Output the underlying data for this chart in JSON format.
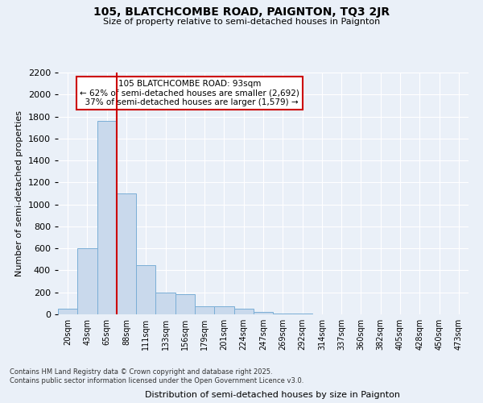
{
  "title": "105, BLATCHCOMBE ROAD, PAIGNTON, TQ3 2JR",
  "subtitle": "Size of property relative to semi-detached houses in Paignton",
  "xlabel": "Distribution of semi-detached houses by size in Paignton",
  "ylabel": "Number of semi-detached properties",
  "footnote": "Contains HM Land Registry data © Crown copyright and database right 2025.\nContains public sector information licensed under the Open Government Licence v3.0.",
  "bar_color": "#c9d9ec",
  "bar_edge_color": "#7aaed6",
  "bg_color": "#eaf0f8",
  "grid_color": "#ffffff",
  "vline_color": "#cc0000",
  "vline_x_index": 3,
  "annotation_text": "105 BLATCHCOMBE ROAD: 93sqm\n← 62% of semi-detached houses are smaller (2,692)\n  37% of semi-detached houses are larger (1,579) →",
  "annotation_box_color": "#ffffff",
  "annotation_box_edge": "#cc0000",
  "categories": [
    "20sqm",
    "43sqm",
    "65sqm",
    "88sqm",
    "111sqm",
    "133sqm",
    "156sqm",
    "179sqm",
    "201sqm",
    "224sqm",
    "247sqm",
    "269sqm",
    "292sqm",
    "314sqm",
    "337sqm",
    "360sqm",
    "382sqm",
    "405sqm",
    "428sqm",
    "450sqm",
    "473sqm"
  ],
  "values": [
    55,
    605,
    1760,
    1100,
    450,
    195,
    185,
    75,
    75,
    50,
    20,
    10,
    5,
    3,
    3,
    3,
    3,
    3,
    3,
    3,
    3
  ],
  "ylim": [
    0,
    2200
  ],
  "yticks": [
    0,
    200,
    400,
    600,
    800,
    1000,
    1200,
    1400,
    1600,
    1800,
    2000,
    2200
  ]
}
